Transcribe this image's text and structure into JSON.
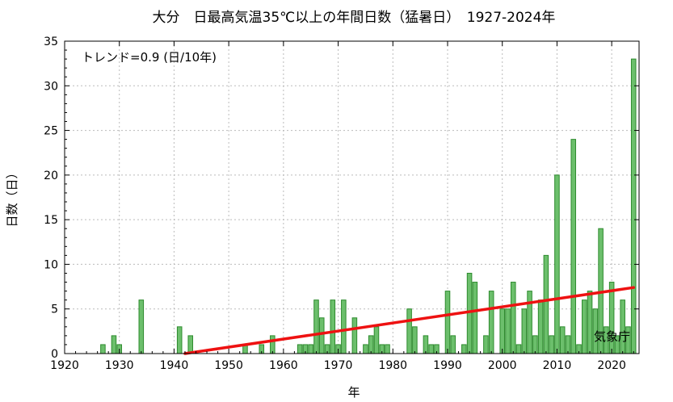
{
  "chart_data": {
    "type": "bar",
    "title": "大分　日最高気温35℃以上の年間日数（猛暑日）　1927-2024年",
    "xlabel": "年",
    "ylabel": "日数（日）",
    "trend_label": "トレンド=0.9 (日/10年)",
    "source_label": "気象庁",
    "xlim": [
      1920,
      2025
    ],
    "ylim": [
      0,
      35
    ],
    "xticks": [
      1920,
      1930,
      1940,
      1950,
      1960,
      1970,
      1980,
      1990,
      2000,
      2010,
      2020
    ],
    "yticks": [
      0,
      5,
      10,
      15,
      20,
      25,
      30,
      35
    ],
    "grid": true,
    "bar_color": "#6cbf6c",
    "bar_edge_color": "#2e8b2e",
    "trend_color": "#ee1111",
    "trend_line": {
      "x": [
        1942,
        2024
      ],
      "y": [
        0,
        7.4
      ]
    },
    "x": [
      1927,
      1928,
      1929,
      1930,
      1931,
      1932,
      1933,
      1934,
      1935,
      1936,
      1937,
      1938,
      1939,
      1940,
      1941,
      1942,
      1943,
      1944,
      1945,
      1946,
      1947,
      1948,
      1949,
      1950,
      1951,
      1952,
      1953,
      1954,
      1955,
      1956,
      1957,
      1958,
      1959,
      1960,
      1961,
      1962,
      1963,
      1964,
      1965,
      1966,
      1967,
      1968,
      1969,
      1970,
      1971,
      1972,
      1973,
      1974,
      1975,
      1976,
      1977,
      1978,
      1979,
      1980,
      1981,
      1982,
      1983,
      1984,
      1985,
      1986,
      1987,
      1988,
      1989,
      1990,
      1991,
      1992,
      1993,
      1994,
      1995,
      1996,
      1997,
      1998,
      1999,
      2000,
      2001,
      2002,
      2003,
      2004,
      2005,
      2006,
      2007,
      2008,
      2009,
      2010,
      2011,
      2012,
      2013,
      2014,
      2015,
      2016,
      2017,
      2018,
      2019,
      2020,
      2021,
      2022,
      2023,
      2024
    ],
    "values": [
      1,
      0,
      2,
      1,
      0,
      0,
      0,
      6,
      0,
      0,
      0,
      0,
      0,
      0,
      3,
      0,
      2,
      0,
      0,
      0,
      0,
      0,
      0,
      0,
      0,
      0,
      1,
      0,
      0,
      1,
      0,
      2,
      0,
      0,
      0,
      0,
      1,
      1,
      1,
      6,
      4,
      1,
      6,
      1,
      6,
      0,
      4,
      0,
      1,
      2,
      3,
      1,
      1,
      0,
      0,
      0,
      5,
      3,
      0,
      2,
      1,
      1,
      0,
      7,
      2,
      0,
      1,
      9,
      8,
      0,
      2,
      7,
      0,
      5,
      5,
      8,
      1,
      5,
      7,
      2,
      6,
      11,
      2,
      20,
      3,
      2,
      24,
      1,
      6,
      7,
      5,
      14,
      3,
      8,
      2,
      6,
      3,
      33
    ]
  }
}
